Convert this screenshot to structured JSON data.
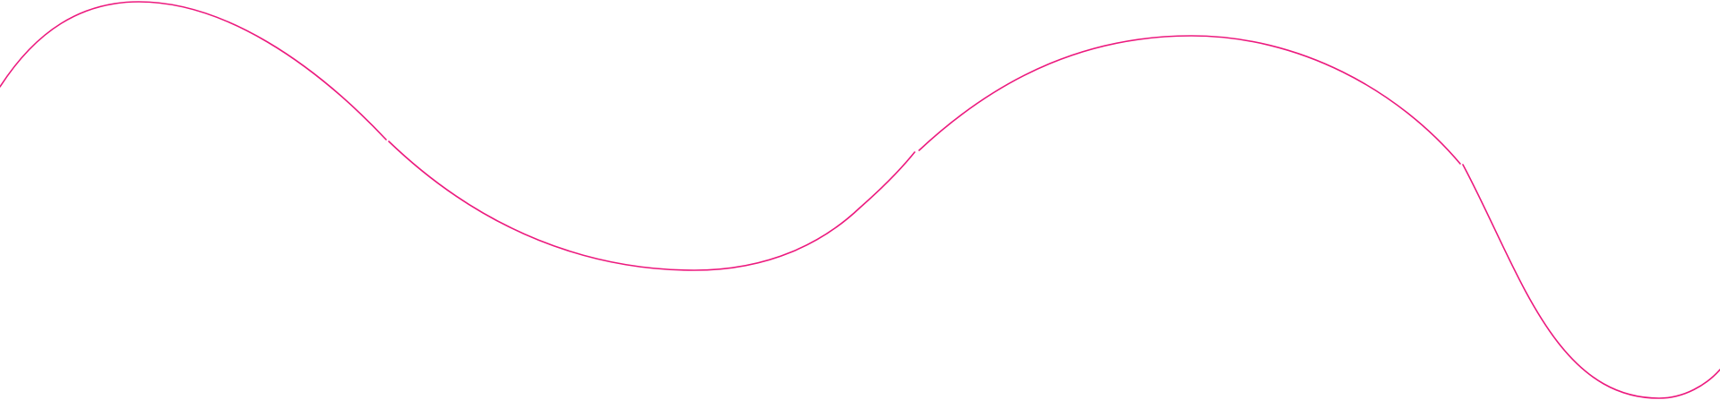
{
  "decoration": {
    "stroke_color": "#ec1a7e",
    "icon": "wave-line-icon"
  }
}
